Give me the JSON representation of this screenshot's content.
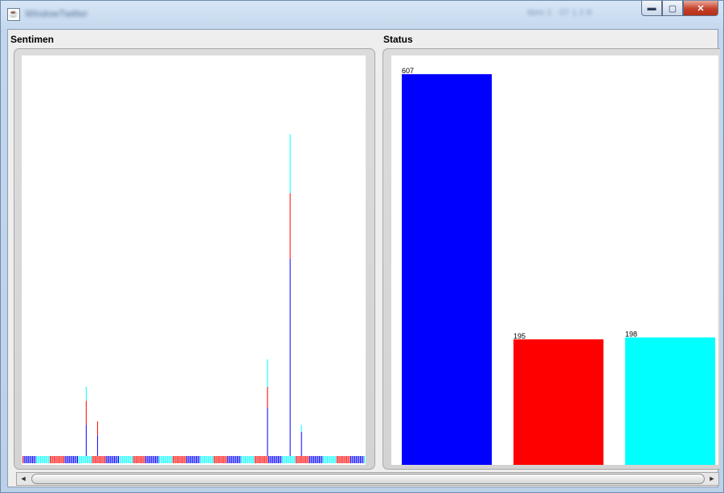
{
  "window": {
    "title": "WindowTwitter",
    "title_right": "Item 1 · 07 1 2 8",
    "controls": {
      "minimize": "▬",
      "maximize": "▢",
      "close": "✕"
    }
  },
  "panes": {
    "left_label": "Sentimen",
    "right_label": "Status"
  },
  "scrollbar": {
    "left_arrow": "◄",
    "right_arrow": "►"
  },
  "colors": {
    "positive": "#0000ff",
    "negative": "#ff0000",
    "neutral": "#00ffff"
  },
  "chart_data": [
    {
      "type": "bar",
      "title": "Sentimen",
      "stacked": true,
      "note": "dense stacked bar chart; categories not labeled",
      "series": [
        {
          "name": "",
          "color": "#0000ff"
        },
        {
          "name": "",
          "color": "#ff0000"
        },
        {
          "name": "",
          "color": "#00ffff"
        }
      ],
      "sample_peaks": [
        {
          "index": 3,
          "blue": 9,
          "red": 7,
          "cyan": 4
        },
        {
          "index": 4,
          "blue": 6,
          "red": 4,
          "cyan": 0
        },
        {
          "index": 19,
          "blue": 14,
          "red": 6,
          "cyan": 8
        },
        {
          "index": 21,
          "blue": 57,
          "red": 19,
          "cyan": 17
        },
        {
          "index": 22,
          "blue": 7,
          "red": 0,
          "cyan": 2
        },
        {
          "index": 28,
          "blue": 7,
          "red": 5,
          "cyan": 0
        },
        {
          "index": 29,
          "blue": 8,
          "red": 6,
          "cyan": 7
        }
      ]
    },
    {
      "type": "bar",
      "title": "Status",
      "categories": [
        "",
        "",
        ""
      ],
      "values": [
        607,
        195,
        198
      ],
      "data_labels": [
        "607",
        "195",
        "198"
      ],
      "colors": [
        "#0000ff",
        "#ff0000",
        "#00ffff"
      ],
      "ylim": [
        0,
        625
      ]
    }
  ]
}
